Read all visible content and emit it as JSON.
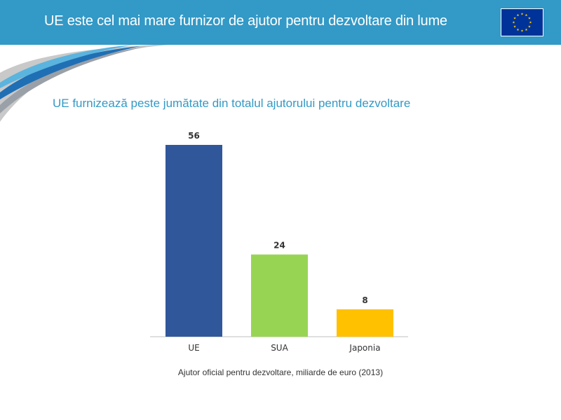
{
  "header": {
    "title": "UE este cel mai mare furnizor de ajutor pentru dezvoltare din lume",
    "logo_icon": "eu-flag-icon"
  },
  "subtitle": "UE furnizează peste jumătate din totalul ajutorului pentru dezvoltare",
  "caption": "Ajutor oficial pentru dezvoltare, miliarde de euro (2013)",
  "colors": {
    "header_bg": "#3399c6",
    "subtitle": "#3399c6",
    "flag_blue": "#003399",
    "flag_star": "#ffcc00"
  },
  "chart_data": {
    "type": "bar",
    "categories": [
      "UE",
      "SUA",
      "Japonia"
    ],
    "values": [
      56,
      24,
      8
    ],
    "colors": [
      "#31579b",
      "#98d454",
      "#ffc100"
    ],
    "xlabel": "Ajutor oficial pentru dezvoltare, miliarde de euro (2013)",
    "ylabel": "",
    "ylim": [
      0,
      56
    ],
    "grid": false,
    "legend": "none"
  }
}
